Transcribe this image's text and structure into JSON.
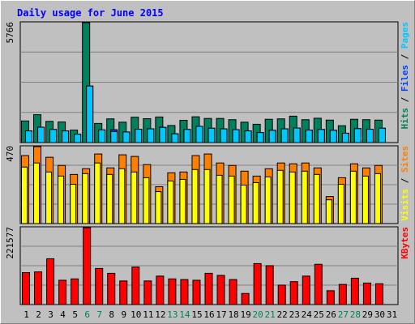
{
  "chart_data": {
    "type": "bar",
    "title": "Daily usage for June 2015",
    "categories": [
      "1",
      "2",
      "3",
      "4",
      "5",
      "6",
      "7",
      "8",
      "9",
      "10",
      "11",
      "12",
      "13",
      "14",
      "15",
      "16",
      "17",
      "18",
      "19",
      "20",
      "21",
      "22",
      "23",
      "24",
      "25",
      "26",
      "27",
      "28",
      "29",
      "30",
      "31"
    ],
    "weekend_days": [
      "6",
      "7",
      "13",
      "14",
      "20",
      "21",
      "27",
      "28"
    ],
    "colors": {
      "background": "#c0c0c0",
      "plot_background": "#c0c0c0",
      "title": "#0000ff",
      "weekday_label": "#000000",
      "weekend_label": "#00805c",
      "hits": "#00805c",
      "files": "#0040ff",
      "pages": "#00c8ff",
      "visits": "#ff8000",
      "sites": "#ffff00",
      "kbytes": "#ff0000"
    },
    "panels": [
      {
        "id": "hits_files_pages",
        "ymax_label": "5766",
        "ymax": 5766,
        "legend": [
          {
            "text": "Hits",
            "color": "#00805c"
          },
          {
            "text": " / ",
            "color": "#000000"
          },
          {
            "text": "Files",
            "color": "#0040ff"
          },
          {
            "text": " / ",
            "color": "#000000"
          },
          {
            "text": "Pages",
            "color": "#00c8ff"
          }
        ],
        "series": [
          {
            "name": "Hits",
            "color": "#00805c",
            "values": [
              1040,
              1340,
              1020,
              990,
              600,
              5766,
              920,
              1140,
              980,
              1220,
              1150,
              1230,
              820,
              1070,
              1240,
              1160,
              1160,
              1100,
              980,
              880,
              1120,
              1140,
              1270,
              1100,
              1170,
              1080,
              810,
              1120,
              1100,
              1080,
              null
            ]
          },
          {
            "name": "Files",
            "color": "#0040ff",
            "values": [
              560,
              740,
              630,
              560,
              400,
              2720,
              610,
              620,
              510,
              640,
              660,
              730,
              420,
              630,
              780,
              690,
              660,
              620,
              560,
              480,
              590,
              660,
              700,
              600,
              630,
              590,
              450,
              670,
              640,
              690,
              null
            ]
          },
          {
            "name": "Pages",
            "color": "#00c8ff",
            "values": [
              560,
              740,
              630,
              560,
              400,
              2720,
              610,
              530,
              510,
              640,
              660,
              730,
              420,
              630,
              780,
              690,
              660,
              620,
              560,
              480,
              590,
              660,
              700,
              600,
              630,
              590,
              450,
              670,
              640,
              690,
              null
            ]
          }
        ]
      },
      {
        "id": "visits_sites",
        "ymax_label": "470",
        "ymax": 470,
        "legend": [
          {
            "text": "Visits",
            "color": "#ffff00"
          },
          {
            "text": " / ",
            "color": "#000000"
          },
          {
            "text": "Sites",
            "color": "#ff8000"
          }
        ],
        "series": [
          {
            "name": "Visits",
            "color": "#ff8000",
            "values": [
              415,
              470,
              405,
              355,
              300,
              335,
              425,
              340,
              420,
              410,
              360,
              225,
              310,
              315,
              415,
              425,
              370,
              355,
              320,
              290,
              335,
              370,
              365,
              370,
              340,
              165,
              280,
              365,
              340,
              355,
              null
            ]
          },
          {
            "name": "Sites",
            "color": "#ffff00",
            "values": [
              345,
              370,
              315,
              290,
              240,
              305,
              370,
              300,
              335,
              315,
              280,
              195,
              260,
              270,
              330,
              330,
              295,
              290,
              235,
              250,
              285,
              325,
              315,
              320,
              300,
              145,
              240,
              320,
              290,
              305,
              null
            ]
          }
        ]
      },
      {
        "id": "kbytes",
        "ymax_label": "221577",
        "ymax": 221577,
        "legend": [
          {
            "text": "KBytes",
            "color": "#ff0000"
          }
        ],
        "series": [
          {
            "name": "KBytes",
            "color": "#ff0000",
            "values": [
              92000,
              94000,
              132000,
              70000,
              74000,
              221577,
              104000,
              90000,
              68000,
              108000,
              68000,
              82000,
              74000,
              72000,
              70000,
              90000,
              84000,
              72000,
              32000,
              118000,
              112000,
              56000,
              66000,
              82000,
              116000,
              40000,
              58000,
              76000,
              62000,
              60000,
              null
            ]
          }
        ]
      }
    ]
  }
}
